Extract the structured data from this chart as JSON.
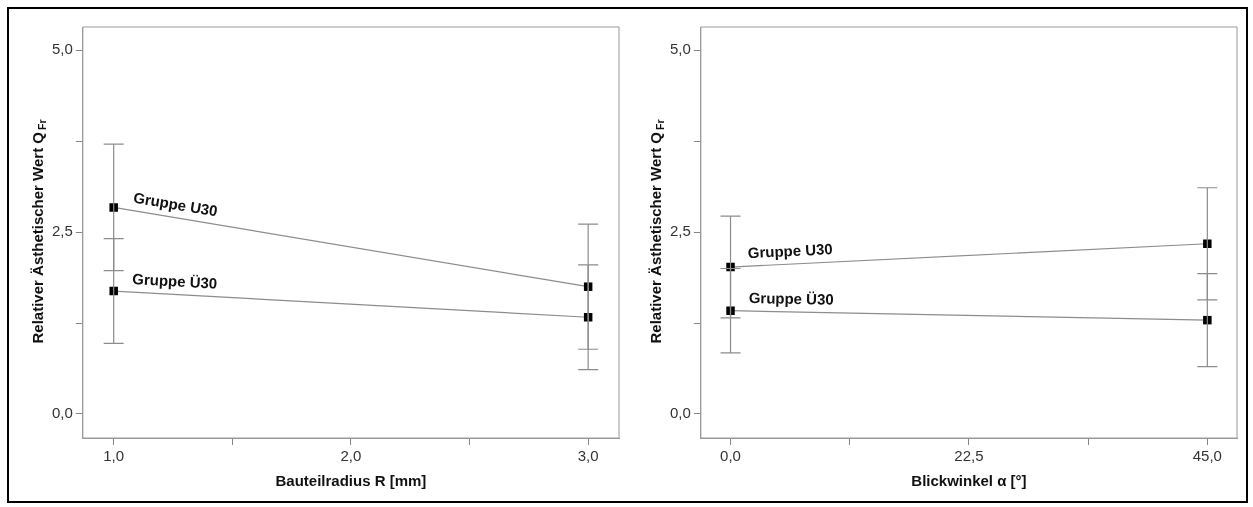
{
  "chart_data": [
    {
      "type": "line",
      "xlabel": "Bauteilradius R [mm]",
      "ylabel": "Relativer Ästhetischer Wert Q$_{Fr}$",
      "x": [
        1,
        3
      ],
      "xlim": [
        0.87,
        3.13
      ],
      "xticks": [
        {
          "value": 1,
          "label": "1,0"
        },
        {
          "value": 1.5,
          "label": null
        },
        {
          "value": 2,
          "label": "2,0"
        },
        {
          "value": 2.5,
          "label": null
        },
        {
          "value": 3,
          "label": "3,0"
        }
      ],
      "ylim": [
        -0.33,
        5.32
      ],
      "yticks": [
        {
          "value": 0,
          "label": "0,0"
        },
        {
          "value": 1.25,
          "label": null
        },
        {
          "value": 2.5,
          "label": "2,5"
        },
        {
          "value": 3.75,
          "label": null
        },
        {
          "value": 5,
          "label": "5,0"
        }
      ],
      "marker": "square",
      "grid": false,
      "series": [
        {
          "name": "Gruppe U30",
          "color": "#000000",
          "values": [
            2.84,
            1.75
          ],
          "errors": [
            0.87,
            0.86
          ]
        },
        {
          "name": "Gruppe Ü30",
          "color": "#000000",
          "values": [
            1.69,
            1.33
          ],
          "errors": [
            0.72,
            0.72
          ]
        }
      ]
    },
    {
      "type": "line",
      "xlabel": "Blickwinkel α [°]",
      "ylabel": "Relativer Ästhetischer Wert Q$_{Fr}$",
      "x": [
        0,
        45
      ],
      "xlim": [
        -2.8,
        47.8
      ],
      "xticks": [
        {
          "value": 0,
          "label": "0,0"
        },
        {
          "value": 11.25,
          "label": null
        },
        {
          "value": 22.5,
          "label": "22,5"
        },
        {
          "value": 33.75,
          "label": null
        },
        {
          "value": 45,
          "label": "45,0"
        }
      ],
      "ylim": [
        -0.33,
        5.32
      ],
      "yticks": [
        {
          "value": 0,
          "label": "0,0"
        },
        {
          "value": 1.25,
          "label": null
        },
        {
          "value": 2.5,
          "label": "2,5"
        },
        {
          "value": 3.75,
          "label": null
        },
        {
          "value": 5,
          "label": "5,0"
        }
      ],
      "marker": "square",
      "grid": false,
      "series": [
        {
          "name": "Gruppe U30",
          "color": "#000000",
          "values": [
            2.02,
            2.34
          ],
          "errors": [
            0.7,
            0.77
          ]
        },
        {
          "name": "Gruppe Ü30",
          "color": "#000000",
          "values": [
            1.42,
            1.29
          ],
          "errors": [
            0.58,
            0.64
          ]
        }
      ]
    }
  ]
}
